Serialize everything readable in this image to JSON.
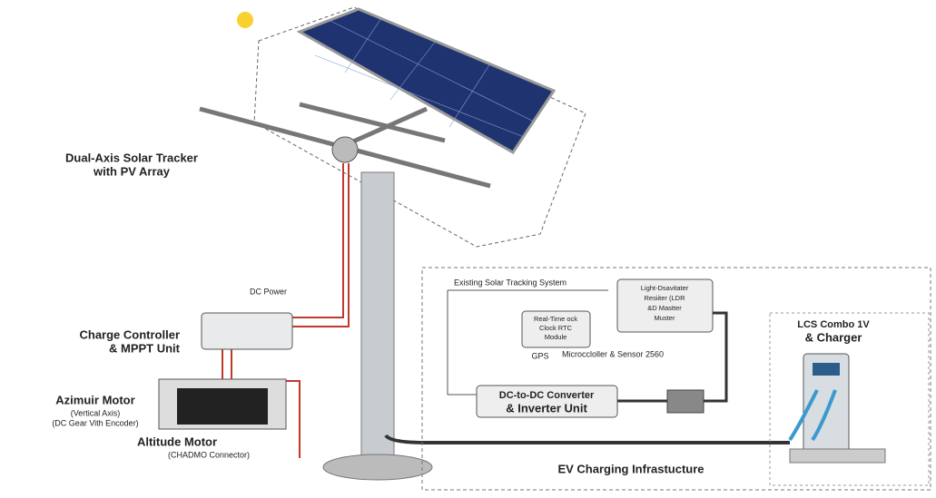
{
  "labels": {
    "tracker": [
      "Dual-Axis Solar Tracker",
      "with PV Array"
    ],
    "dc_power": "DC Power",
    "charge_controller": [
      "Charge Controller",
      "& MPPT Unit"
    ],
    "azimuth_motor": [
      "Azimuir Motor",
      "(Vertical Axis)",
      "(DC Gear Vith Encoder)"
    ],
    "altitude_motor": [
      "Altitude Motor",
      "(CHADMO Connector)"
    ],
    "existing_system": "Existing Solar Tracking System",
    "rtc_module": [
      "Real-Time ock",
      "Clock RTC",
      "Module"
    ],
    "ldr": [
      "Light-Dsavitater",
      "Resiiter (LDR",
      "&D Mastter",
      "Muster"
    ],
    "gps": "GPS",
    "microcontroller": "Microccloller & Sensor 2560",
    "converter": [
      "DC-to-DC Converter",
      "& Inverter Unit"
    ],
    "charger": [
      "LCS Combo 1V",
      "& Charger"
    ],
    "ev_infra": "EV Charging Infrastucture"
  }
}
